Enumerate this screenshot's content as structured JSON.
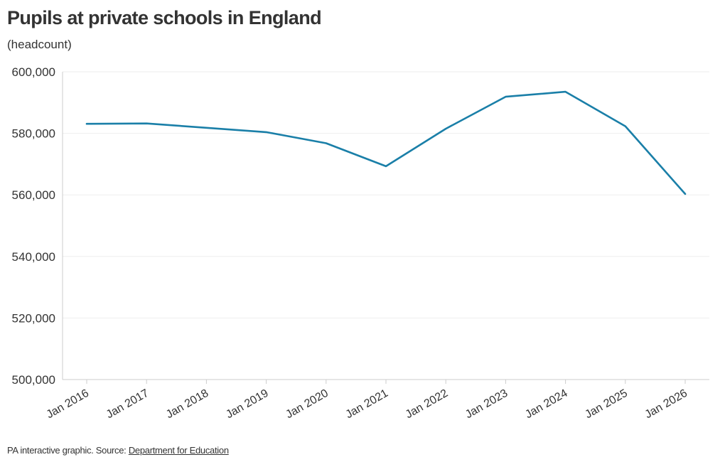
{
  "chart_data": {
    "type": "line",
    "title": "Pupils at private schools in England",
    "subtitle": "(headcount)",
    "xlabel": "",
    "ylabel": "",
    "categories": [
      "Jan 2016",
      "Jan 2017",
      "Jan 2018",
      "Jan 2019",
      "Jan 2020",
      "Jan 2021",
      "Jan 2022",
      "Jan 2023",
      "Jan 2024",
      "Jan 2025",
      "Jan 2026"
    ],
    "series": [
      {
        "values": [
          583100,
          583200,
          581800,
          580400,
          576800,
          569300,
          581500,
          591900,
          593500,
          582300,
          560300
        ]
      }
    ],
    "ylim": [
      500000,
      600000
    ],
    "yticks": [
      "500,000",
      "520,000",
      "540,000",
      "560,000",
      "580,000",
      "600,000"
    ],
    "ytick_values": [
      500000,
      520000,
      540000,
      560000,
      580000,
      600000
    ],
    "grid": true,
    "legend": "none",
    "line_color": "#1a7fa8",
    "grid_color": "#eeeeee",
    "axis_color": "#cccccc"
  },
  "footer": {
    "prefix": "PA interactive graphic. Source: ",
    "source_link": "Department for Education"
  }
}
